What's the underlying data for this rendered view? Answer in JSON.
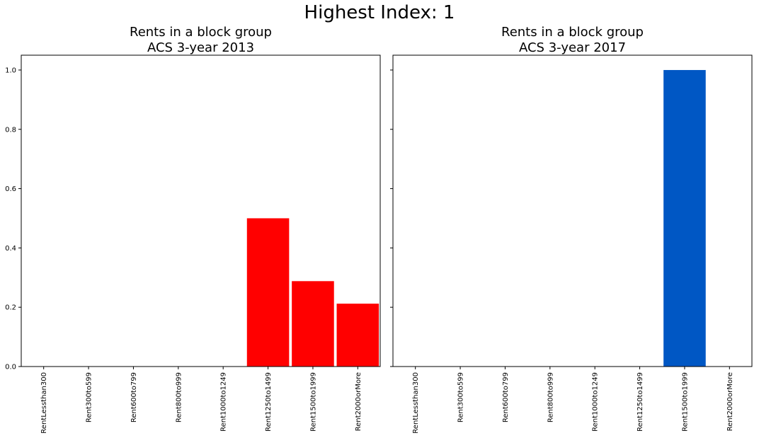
{
  "suptitle": "Highest Index: 1",
  "chart_data": [
    {
      "type": "bar",
      "title": "Rents in a block group\nACS 3-year 2013",
      "title_lines": [
        "Rents in a block group",
        "ACS 3-year 2013"
      ],
      "categories": [
        "RentLessthan300",
        "Rent300to599",
        "Rent600to799",
        "Rent800to999",
        "Rent1000to1249",
        "Rent1250to1499",
        "Rent1500to1999",
        "Rent2000orMore"
      ],
      "values": [
        0,
        0,
        0,
        0,
        0,
        0.5,
        0.288,
        0.212
      ],
      "color": "#ff0000",
      "ylim": [
        0,
        1.05
      ],
      "yticks": [
        "0.0",
        "0.2",
        "0.4",
        "0.6",
        "0.8",
        "1.0"
      ],
      "ytick_values": [
        0,
        0.2,
        0.4,
        0.6,
        0.8,
        1.0
      ],
      "xlabel": "",
      "ylabel": "",
      "grid": false,
      "show_yticklabels": true
    },
    {
      "type": "bar",
      "title": "Rents in a block group\nACS 3-year 2017",
      "title_lines": [
        "Rents in a block group",
        "ACS 3-year 2017"
      ],
      "categories": [
        "RentLessthan300",
        "Rent300to599",
        "Rent600to799",
        "Rent800to999",
        "Rent1000to1249",
        "Rent1250to1499",
        "Rent1500to1999",
        "Rent2000orMore"
      ],
      "values": [
        0,
        0,
        0,
        0,
        0,
        0,
        1.0,
        0
      ],
      "color": "#0057c4",
      "ylim": [
        0,
        1.05
      ],
      "yticks": [
        "0.0",
        "0.2",
        "0.4",
        "0.6",
        "0.8",
        "1.0"
      ],
      "ytick_values": [
        0,
        0.2,
        0.4,
        0.6,
        0.8,
        1.0
      ],
      "xlabel": "",
      "ylabel": "",
      "grid": false,
      "show_yticklabels": false
    }
  ]
}
